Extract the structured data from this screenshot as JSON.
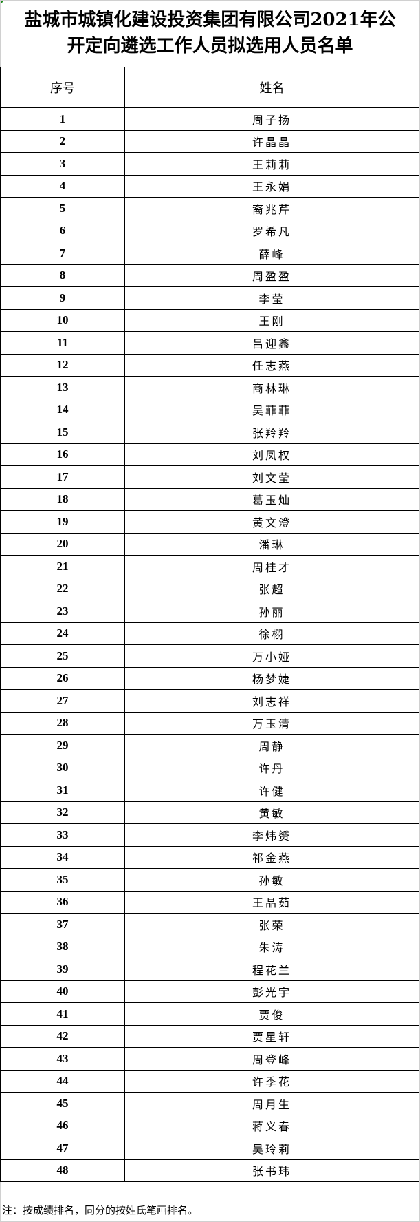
{
  "title": {
    "line1": "盐城市城镇化建设投资集团有限公司2021年公",
    "line2": "开定向遴选工作人员拟选用人员名单"
  },
  "table": {
    "headers": [
      "序号",
      "姓名"
    ],
    "rows": [
      {
        "no": "1",
        "name": "周子扬"
      },
      {
        "no": "2",
        "name": "许晶晶"
      },
      {
        "no": "3",
        "name": "王莉莉"
      },
      {
        "no": "4",
        "name": "王永娟"
      },
      {
        "no": "5",
        "name": "裔兆芹"
      },
      {
        "no": "6",
        "name": "罗希凡"
      },
      {
        "no": "7",
        "name": "薛峰"
      },
      {
        "no": "8",
        "name": "周盈盈"
      },
      {
        "no": "9",
        "name": "李莹"
      },
      {
        "no": "10",
        "name": "王刚"
      },
      {
        "no": "11",
        "name": "吕迎鑫"
      },
      {
        "no": "12",
        "name": "任志燕"
      },
      {
        "no": "13",
        "name": "商林琳"
      },
      {
        "no": "14",
        "name": "吴菲菲"
      },
      {
        "no": "15",
        "name": "张羚羚"
      },
      {
        "no": "16",
        "name": "刘凤权"
      },
      {
        "no": "17",
        "name": "刘文莹"
      },
      {
        "no": "18",
        "name": "葛玉灿"
      },
      {
        "no": "19",
        "name": "黄文澄"
      },
      {
        "no": "20",
        "name": "潘琳"
      },
      {
        "no": "21",
        "name": "周桂才"
      },
      {
        "no": "22",
        "name": "张超"
      },
      {
        "no": "23",
        "name": "孙丽"
      },
      {
        "no": "24",
        "name": "徐栩"
      },
      {
        "no": "25",
        "name": "万小娅"
      },
      {
        "no": "26",
        "name": "杨梦婕"
      },
      {
        "no": "27",
        "name": "刘志祥"
      },
      {
        "no": "28",
        "name": "万玉清"
      },
      {
        "no": "29",
        "name": "周静"
      },
      {
        "no": "30",
        "name": "许丹"
      },
      {
        "no": "31",
        "name": "许健"
      },
      {
        "no": "32",
        "name": "黄敏"
      },
      {
        "no": "33",
        "name": "李炜赟"
      },
      {
        "no": "34",
        "name": "祁金燕"
      },
      {
        "no": "35",
        "name": "孙敏"
      },
      {
        "no": "36",
        "name": "王晶茹"
      },
      {
        "no": "37",
        "name": "张荣"
      },
      {
        "no": "38",
        "name": "朱涛"
      },
      {
        "no": "39",
        "name": "程花兰"
      },
      {
        "no": "40",
        "name": "彭光宇"
      },
      {
        "no": "41",
        "name": "贾俊"
      },
      {
        "no": "42",
        "name": "贾星轩"
      },
      {
        "no": "43",
        "name": "周登峰"
      },
      {
        "no": "44",
        "name": "许季花"
      },
      {
        "no": "45",
        "name": "周月生"
      },
      {
        "no": "46",
        "name": "蒋义春"
      },
      {
        "no": "47",
        "name": "吴玲莉"
      },
      {
        "no": "48",
        "name": "张书玮"
      }
    ]
  },
  "note": "注：按成绩排名，同分的按姓氏笔画排名。"
}
